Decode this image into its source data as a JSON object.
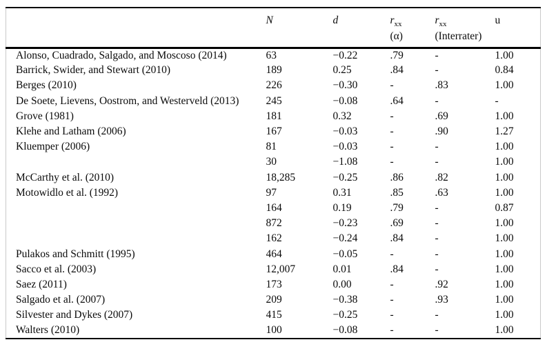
{
  "table": {
    "columns": [
      {
        "label": "",
        "italic": false,
        "subscript": "",
        "subline": ""
      },
      {
        "label": "N",
        "italic": true,
        "subscript": "",
        "subline": ""
      },
      {
        "label": "d",
        "italic": true,
        "subscript": "",
        "subline": ""
      },
      {
        "label": "r",
        "italic": true,
        "subscript": "xx",
        "subline": "(α)"
      },
      {
        "label": "r",
        "italic": true,
        "subscript": "xx",
        "subline": "(Interrater)"
      },
      {
        "label": "u",
        "italic": false,
        "subscript": "",
        "subline": ""
      }
    ],
    "rows": [
      [
        "Alonso, Cuadrado, Salgado, and Moscoso (2014)",
        "63",
        "−0.22",
        ".79",
        "-",
        "1.00"
      ],
      [
        "Barrick, Swider, and Stewart (2010)",
        "189",
        "0.25",
        ".84",
        "-",
        "0.84"
      ],
      [
        "Berges (2010)",
        "226",
        "−0.30",
        "-",
        ".83",
        "1.00"
      ],
      [
        "De Soete, Lievens, Oostrom, and Westerveld (2013)",
        "245",
        "−0.08",
        ".64",
        "-",
        "-"
      ],
      [
        "Grove (1981)",
        "181",
        "0.32",
        "-",
        ".69",
        "1.00"
      ],
      [
        "Klehe and Latham (2006)",
        "167",
        "−0.03",
        "-",
        ".90",
        "1.27"
      ],
      [
        "Kluemper (2006)",
        "81",
        "−0.03",
        "-",
        "-",
        "1.00"
      ],
      [
        "",
        "30",
        "−1.08",
        "-",
        "-",
        "1.00"
      ],
      [
        "McCarthy et al. (2010)",
        "18,285",
        "−0.25",
        ".86",
        ".82",
        "1.00"
      ],
      [
        "Motowidlo et al. (1992)",
        "97",
        "0.31",
        ".85",
        ".63",
        "1.00"
      ],
      [
        "",
        "164",
        "0.19",
        ".79",
        "-",
        "0.87"
      ],
      [
        "",
        "872",
        "−0.23",
        ".69",
        "-",
        "1.00"
      ],
      [
        "",
        "162",
        "−0.24",
        ".84",
        "-",
        "1.00"
      ],
      [
        "Pulakos and Schmitt (1995)",
        "464",
        "−0.05",
        "-",
        "-",
        "1.00"
      ],
      [
        "Sacco et al. (2003)",
        "12,007",
        "0.01",
        ".84",
        "-",
        "1.00"
      ],
      [
        "Saez (2011)",
        "173",
        "0.00",
        "-",
        ".92",
        "1.00"
      ],
      [
        "Salgado et al. (2007)",
        "209",
        "−0.38",
        "-",
        ".93",
        "1.00"
      ],
      [
        "Silvester and Dykes (2007)",
        "415",
        "−0.25",
        "-",
        "-",
        "1.00"
      ],
      [
        "Walters (2010)",
        "100",
        "−0.08",
        "-",
        "-",
        "1.00"
      ]
    ],
    "colors": {
      "text": "#0a0a0a",
      "rule": "#000000",
      "edge_rule": "#c9c9c9",
      "background": "#ffffff"
    }
  }
}
